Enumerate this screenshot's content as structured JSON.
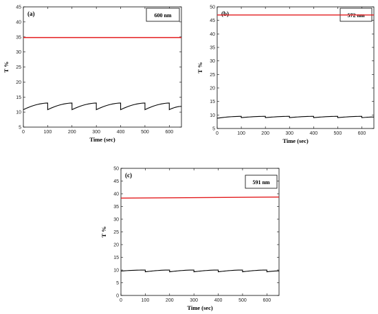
{
  "chart_data": [
    {
      "type": "line",
      "panel_label": "(a)",
      "wavelength_label": "600 nm",
      "xlabel": "Time (sec)",
      "ylabel": "T %",
      "xlim": [
        0,
        650
      ],
      "ylim": [
        5,
        45
      ],
      "xticks": [
        0,
        100,
        200,
        300,
        400,
        500,
        600
      ],
      "yticks": [
        5,
        10,
        15,
        20,
        25,
        30,
        35,
        40,
        45
      ],
      "grid": false,
      "series": [
        {
          "color": "#e31a1c",
          "x": [
            0,
            650
          ],
          "y": [
            34.8,
            34.8
          ]
        },
        {
          "color": "#000000",
          "pattern": "sawtooth",
          "start": 10.8,
          "end_before_drop": 13.0,
          "start_after_drop": 10.8,
          "drop_times": [
            100,
            200,
            300,
            400,
            500,
            600
          ]
        }
      ]
    },
    {
      "type": "line",
      "panel_label": "(b)",
      "wavelength_label": "572 nm",
      "xlabel": "Time (sec)",
      "ylabel": "T %",
      "xlim": [
        0,
        650
      ],
      "ylim": [
        5,
        50
      ],
      "xticks": [
        0,
        100,
        200,
        300,
        400,
        500,
        600
      ],
      "yticks": [
        5,
        10,
        15,
        20,
        25,
        30,
        35,
        40,
        45,
        50
      ],
      "grid": false,
      "series": [
        {
          "color": "#e31a1c",
          "x": [
            0,
            650
          ],
          "y": [
            47.0,
            47.0
          ]
        },
        {
          "color": "#000000",
          "pattern": "sawtooth",
          "start": 8.8,
          "end_before_drop": 9.5,
          "start_after_drop": 9.0,
          "drop_times": [
            100,
            200,
            300,
            400,
            500,
            600
          ]
        }
      ]
    },
    {
      "type": "line",
      "panel_label": "(c)",
      "wavelength_label": "591 nm",
      "xlabel": "Time (sec)",
      "ylabel": "T %",
      "xlim": [
        0,
        650
      ],
      "ylim": [
        0,
        50
      ],
      "xticks": [
        0,
        100,
        200,
        300,
        400,
        500,
        600
      ],
      "yticks": [
        0,
        5,
        10,
        15,
        20,
        25,
        30,
        35,
        40,
        45,
        50
      ],
      "grid": false,
      "series": [
        {
          "color": "#e31a1c",
          "x": [
            0,
            650
          ],
          "y": [
            38.3,
            38.7
          ]
        },
        {
          "color": "#000000",
          "pattern": "sawtooth",
          "start": 9.6,
          "end_before_drop": 10.0,
          "start_after_drop": 9.3,
          "drop_times": [
            100,
            200,
            300,
            400,
            500,
            600
          ]
        }
      ]
    }
  ]
}
